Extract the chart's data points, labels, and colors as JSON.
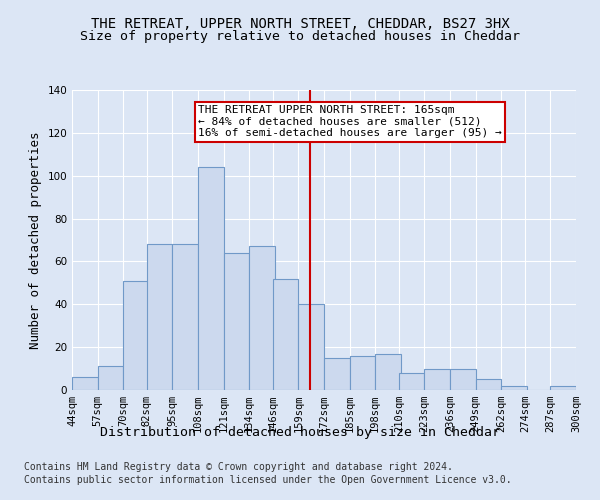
{
  "title1": "THE RETREAT, UPPER NORTH STREET, CHEDDAR, BS27 3HX",
  "title2": "Size of property relative to detached houses in Cheddar",
  "xlabel": "Distribution of detached houses by size in Cheddar",
  "ylabel": "Number of detached properties",
  "footer1": "Contains HM Land Registry data © Crown copyright and database right 2024.",
  "footer2": "Contains public sector information licensed under the Open Government Licence v3.0.",
  "bar_left_edges": [
    44,
    57,
    70,
    82,
    95,
    108,
    121,
    134,
    146,
    159,
    172,
    185,
    198,
    210,
    223,
    236,
    249,
    262,
    274,
    287
  ],
  "bar_heights": [
    6,
    11,
    51,
    68,
    68,
    104,
    64,
    67,
    52,
    40,
    15,
    16,
    17,
    8,
    10,
    10,
    5,
    2,
    0,
    2
  ],
  "bin_width": 13,
  "bar_color": "#ccd9ee",
  "bar_edge_color": "#7099c8",
  "vline_x": 165,
  "vline_color": "#cc0000",
  "annotation_text": "THE RETREAT UPPER NORTH STREET: 165sqm\n← 84% of detached houses are smaller (512)\n16% of semi-detached houses are larger (95) →",
  "annotation_box_color": "#cc0000",
  "ylim": [
    0,
    140
  ],
  "yticks": [
    0,
    20,
    40,
    60,
    80,
    100,
    120,
    140
  ],
  "xtick_labels": [
    "44sqm",
    "57sqm",
    "70sqm",
    "82sqm",
    "95sqm",
    "108sqm",
    "121sqm",
    "134sqm",
    "146sqm",
    "159sqm",
    "172sqm",
    "185sqm",
    "198sqm",
    "210sqm",
    "223sqm",
    "236sqm",
    "249sqm",
    "262sqm",
    "274sqm",
    "287sqm",
    "300sqm"
  ],
  "xtick_positions": [
    44,
    57,
    70,
    82,
    95,
    108,
    121,
    134,
    146,
    159,
    172,
    185,
    198,
    210,
    223,
    236,
    249,
    262,
    274,
    287,
    300
  ],
  "background_color": "#dce6f5",
  "plot_bg_color": "#dce6f5",
  "grid_color": "#ffffff",
  "title_fontsize": 10,
  "subtitle_fontsize": 9.5,
  "axis_label_fontsize": 9,
  "tick_fontsize": 7.5,
  "footer_fontsize": 7,
  "annotation_fontsize": 8
}
